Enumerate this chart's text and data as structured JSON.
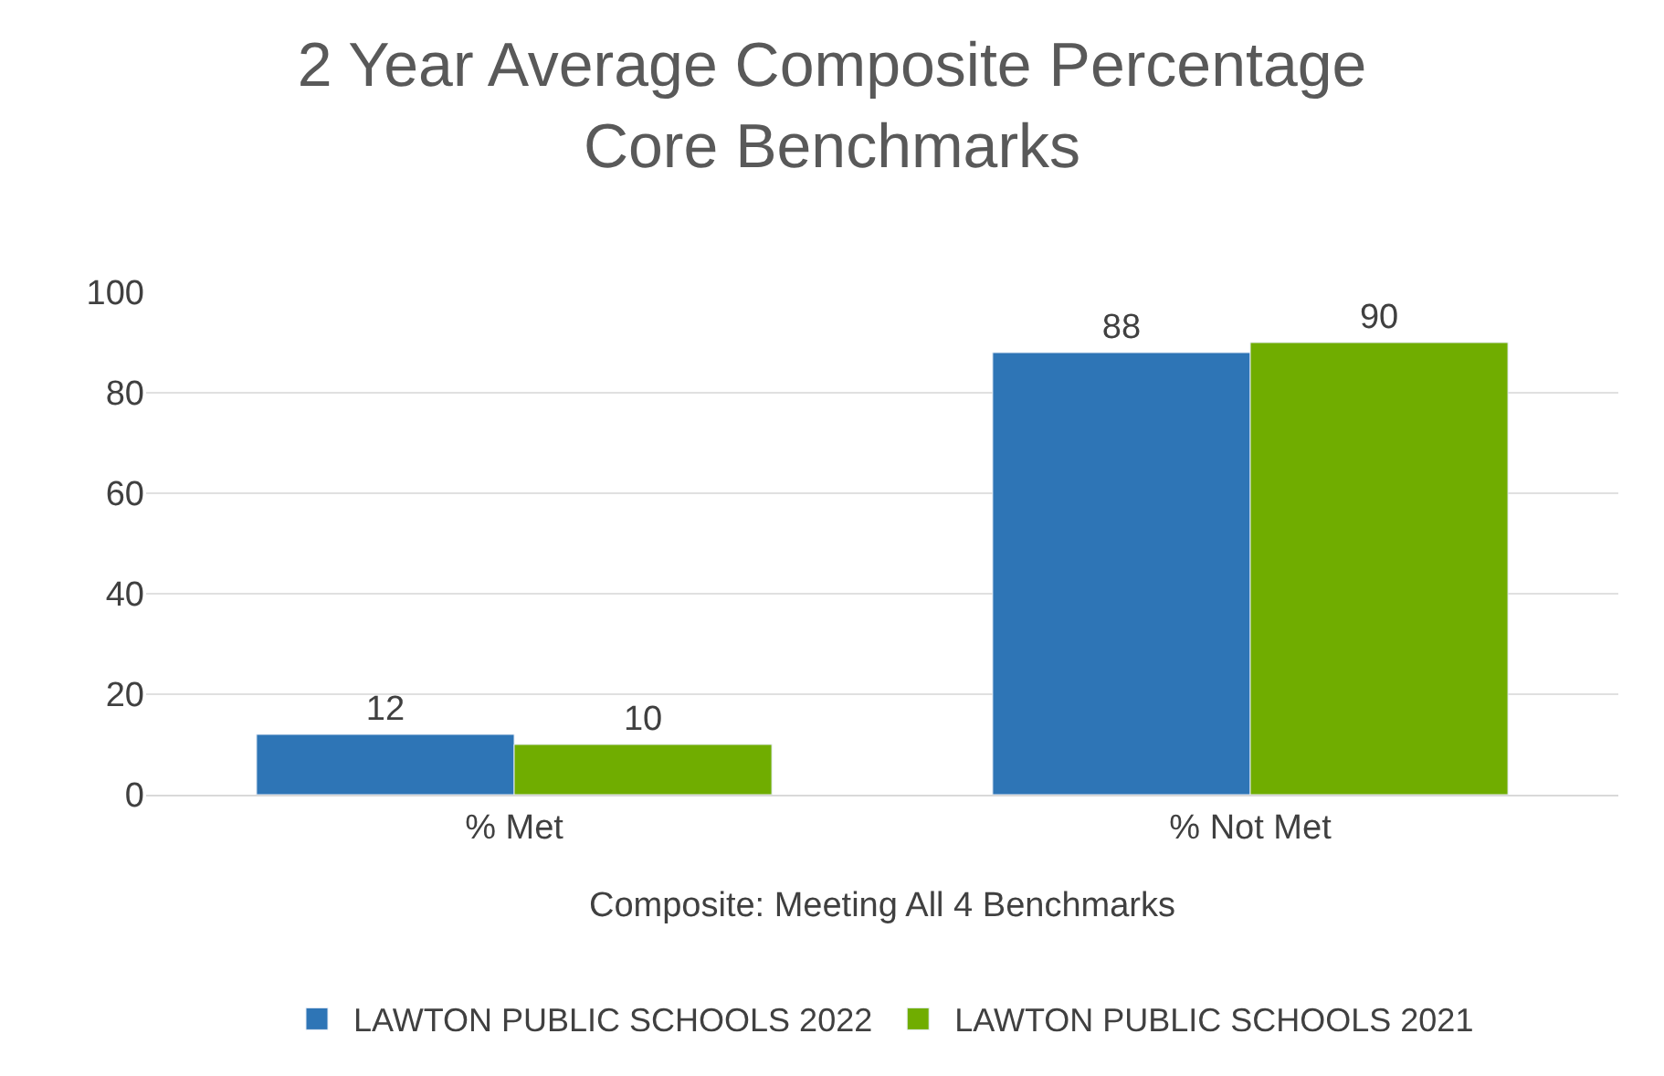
{
  "chart_data": {
    "type": "bar",
    "title": "2 Year Average Composite Percentage\nCore Benchmarks",
    "xlabel": "Composite: Meeting All 4 Benchmarks",
    "categories": [
      "% Met",
      "% Not Met"
    ],
    "series": [
      {
        "name": "LAWTON PUBLIC SCHOOLS 2022",
        "color": "#2e75b6",
        "values": [
          12,
          88
        ]
      },
      {
        "name": "LAWTON PUBLIC SCHOOLS 2021",
        "color": "#70ad00",
        "values": [
          10,
          90
        ]
      }
    ],
    "ylim": [
      0,
      100
    ],
    "yticks": [
      0,
      20,
      40,
      60,
      80,
      100
    ],
    "grid": "y",
    "legend": "bottom",
    "data_labels": true
  }
}
